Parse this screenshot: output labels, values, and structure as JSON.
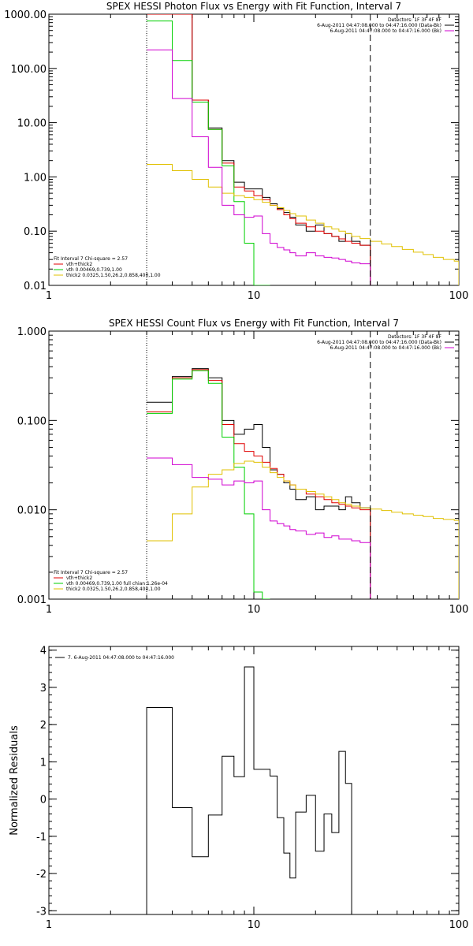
{
  "chart_data": [
    {
      "type": "line",
      "id": "p1",
      "title": "SPEX HESSI Photon Flux vs Energy with Fit Function, Interval 7",
      "xscale": "log",
      "yscale": "log",
      "xlim": [
        1,
        100
      ],
      "ylim": [
        0.01,
        1000
      ],
      "x_ticks": [
        1,
        10,
        100
      ],
      "x_tick_labels": [
        "1",
        "10",
        "100"
      ],
      "y_ticks": [
        0.01,
        0.1,
        1,
        10,
        100,
        1000
      ],
      "y_tick_labels": [
        "0.01",
        "0.10",
        "1.00",
        "10.00",
        "100.00",
        "1000.00"
      ],
      "vlines": [
        {
          "x": 3,
          "style": "dotted",
          "color": "#000000"
        },
        {
          "x": 37,
          "style": "dashed",
          "color": "#000000"
        }
      ],
      "legend_top_right": [
        {
          "text": "Detectors: 1F 3F 4F 8F",
          "color": ""
        },
        {
          "text": "6-Aug-2011 04:47:08.000 to 04:47:16.000 (Data-Bk)",
          "color": "#000000"
        },
        {
          "text": "6-Aug-2011 04:47:08.000 to 04:47:16.000 (Bk)",
          "color": "#d000d0"
        }
      ],
      "legend_bottom_left": [
        {
          "text": "Fit Interval 7   Chi-square = 2.57",
          "color": ""
        },
        {
          "text": "vth+thick2",
          "color": "#e00000"
        },
        {
          "text": "vth 0.00469,0.739,1.00",
          "color": "#00d000"
        },
        {
          "text": "thick2 0.0325,1.50,26.2,0.858,400,1.00",
          "color": "#e0c000"
        }
      ],
      "series": [
        {
          "name": "Data-Bk",
          "color": "#000000",
          "step": true,
          "edges": [
            3,
            4,
            5,
            6,
            7,
            8,
            9,
            10,
            11,
            12,
            13,
            14,
            15,
            16,
            18,
            20,
            22,
            24,
            26,
            28,
            30,
            33,
            37
          ],
          "values": [
            1000,
            1000,
            26,
            8,
            2.0,
            0.8,
            0.6,
            0.6,
            0.42,
            0.32,
            0.26,
            0.22,
            0.18,
            0.13,
            0.1,
            0.13,
            0.09,
            0.08,
            0.065,
            0.09,
            0.065,
            0.055
          ]
        },
        {
          "name": "vth+thick2",
          "color": "#e00000",
          "step": true,
          "edges": [
            3,
            4,
            5,
            6,
            7,
            8,
            9,
            10,
            11,
            12,
            13,
            14,
            15,
            16,
            18,
            20,
            22,
            24,
            26,
            28,
            30,
            33,
            37
          ],
          "values": [
            1000,
            1000,
            26,
            7.5,
            1.8,
            0.65,
            0.55,
            0.45,
            0.38,
            0.3,
            0.25,
            0.2,
            0.17,
            0.14,
            0.12,
            0.1,
            0.09,
            0.08,
            0.072,
            0.065,
            0.06,
            0.055
          ]
        },
        {
          "name": "vth",
          "color": "#00d000",
          "step": true,
          "edges": [
            3,
            4,
            5,
            6,
            7,
            8,
            9,
            10,
            11,
            12
          ],
          "values": [
            750,
            140,
            24,
            7.5,
            1.6,
            0.35,
            0.06,
            0.01,
            0.001
          ]
        },
        {
          "name": "thick2",
          "color": "#e0c000",
          "step": true,
          "edges": [
            3,
            4,
            5,
            6,
            7,
            8,
            9,
            10,
            11,
            12,
            13,
            14,
            15,
            16,
            18,
            20,
            22,
            24,
            26,
            28,
            30,
            33,
            37,
            42,
            47,
            53,
            60,
            67,
            75,
            84,
            95,
            100
          ],
          "values": [
            1.7,
            1.3,
            0.9,
            0.65,
            0.5,
            0.45,
            0.42,
            0.38,
            0.34,
            0.3,
            0.27,
            0.24,
            0.21,
            0.19,
            0.16,
            0.14,
            0.12,
            0.11,
            0.1,
            0.09,
            0.08,
            0.073,
            0.065,
            0.058,
            0.052,
            0.046,
            0.041,
            0.037,
            0.033,
            0.03,
            0.028
          ]
        },
        {
          "name": "Bk",
          "color": "#d000d0",
          "step": true,
          "edges": [
            3,
            4,
            5,
            6,
            7,
            8,
            9,
            10,
            11,
            12,
            13,
            14,
            15,
            16,
            18,
            20,
            22,
            24,
            26,
            28,
            30,
            33,
            37
          ],
          "values": [
            220,
            28,
            5.5,
            1.5,
            0.3,
            0.2,
            0.18,
            0.19,
            0.09,
            0.06,
            0.05,
            0.045,
            0.04,
            0.035,
            0.04,
            0.035,
            0.033,
            0.032,
            0.03,
            0.028,
            0.026,
            0.025
          ]
        }
      ]
    },
    {
      "type": "line",
      "id": "p2",
      "title": "SPEX HESSI Count Flux vs Energy with Fit Function, Interval 7",
      "xscale": "log",
      "yscale": "log",
      "xlim": [
        1,
        100
      ],
      "ylim": [
        0.001,
        1
      ],
      "x_ticks": [
        1,
        10,
        100
      ],
      "x_tick_labels": [
        "1",
        "10",
        "100"
      ],
      "y_ticks": [
        0.001,
        0.01,
        0.1,
        1
      ],
      "y_tick_labels": [
        "0.001",
        "0.010",
        "0.100",
        "1.000"
      ],
      "vlines": [
        {
          "x": 3,
          "style": "dotted",
          "color": "#000000"
        },
        {
          "x": 37,
          "style": "dashed",
          "color": "#000000"
        }
      ],
      "legend_top_right": [
        {
          "text": "Detectors: 1F 3F 4F 8F",
          "color": ""
        },
        {
          "text": "6-Aug-2011 04:47:08.000 to 04:47:16.000 (Data-Bk)",
          "color": "#000000"
        },
        {
          "text": "6-Aug-2011 04:47:08.000 to 04:47:16.000 (Bk)",
          "color": "#d000d0"
        }
      ],
      "legend_bottom_left": [
        {
          "text": "Fit Interval 7   Chi-square = 2.57",
          "color": ""
        },
        {
          "text": "vth+thick2",
          "color": "#e00000"
        },
        {
          "text": "vth 0.00469,0.739,1.00   full chian 1.26e-04",
          "color": "#00d000"
        },
        {
          "text": "thick2 0.0325,1.50,26.2,0.858,400,1.00",
          "color": "#e0c000"
        }
      ],
      "series": [
        {
          "name": "Data-Bk",
          "color": "#000000",
          "step": true,
          "edges": [
            3,
            4,
            5,
            6,
            7,
            8,
            9,
            10,
            11,
            12,
            13,
            14,
            15,
            16,
            18,
            20,
            22,
            24,
            26,
            28,
            30,
            33,
            37
          ],
          "values": [
            0.16,
            0.31,
            0.38,
            0.3,
            0.1,
            0.07,
            0.08,
            0.09,
            0.05,
            0.028,
            0.025,
            0.02,
            0.017,
            0.013,
            0.014,
            0.01,
            0.011,
            0.011,
            0.01,
            0.014,
            0.012,
            0.0105
          ]
        },
        {
          "name": "vth+thick2",
          "color": "#e00000",
          "step": true,
          "edges": [
            3,
            4,
            5,
            6,
            7,
            8,
            9,
            10,
            11,
            12,
            13,
            14,
            15,
            16,
            18,
            20,
            22,
            24,
            26,
            28,
            30,
            33,
            37
          ],
          "values": [
            0.125,
            0.3,
            0.37,
            0.28,
            0.09,
            0.055,
            0.045,
            0.04,
            0.034,
            0.029,
            0.025,
            0.021,
            0.019,
            0.017,
            0.015,
            0.014,
            0.013,
            0.012,
            0.0115,
            0.011,
            0.0105,
            0.01
          ]
        },
        {
          "name": "vth",
          "color": "#00d000",
          "step": true,
          "edges": [
            3,
            4,
            5,
            6,
            7,
            8,
            9,
            10,
            11,
            12
          ],
          "values": [
            0.12,
            0.29,
            0.36,
            0.26,
            0.065,
            0.03,
            0.009,
            0.0012,
            0.0008
          ]
        },
        {
          "name": "thick2",
          "color": "#e0c000",
          "step": true,
          "edges": [
            3,
            4,
            5,
            6,
            7,
            8,
            9,
            10,
            11,
            12,
            13,
            14,
            15,
            16,
            18,
            20,
            22,
            24,
            26,
            28,
            30,
            33,
            37,
            42,
            47,
            53,
            60,
            67,
            75,
            84,
            95,
            100
          ],
          "values": [
            0.0045,
            0.009,
            0.018,
            0.025,
            0.028,
            0.033,
            0.035,
            0.034,
            0.03,
            0.026,
            0.023,
            0.021,
            0.019,
            0.017,
            0.016,
            0.015,
            0.014,
            0.013,
            0.012,
            0.0115,
            0.011,
            0.0105,
            0.0102,
            0.0098,
            0.0094,
            0.009,
            0.0087,
            0.0084,
            0.008,
            0.0078,
            0.0076
          ]
        },
        {
          "name": "Bk",
          "color": "#d000d0",
          "step": true,
          "edges": [
            3,
            4,
            5,
            6,
            7,
            8,
            9,
            10,
            11,
            12,
            13,
            14,
            15,
            16,
            18,
            20,
            22,
            24,
            26,
            28,
            30,
            33,
            37
          ],
          "values": [
            0.038,
            0.032,
            0.023,
            0.022,
            0.019,
            0.021,
            0.02,
            0.021,
            0.01,
            0.0075,
            0.007,
            0.0066,
            0.006,
            0.0058,
            0.0053,
            0.0055,
            0.0049,
            0.0051,
            0.0047,
            0.0047,
            0.0045,
            0.0043
          ]
        }
      ]
    },
    {
      "type": "line",
      "id": "p3",
      "title": "",
      "ylabel": "Normalized Residuals",
      "xscale": "log",
      "yscale": "linear",
      "xlim": [
        1,
        100
      ],
      "ylim": [
        -3.1,
        4.1
      ],
      "x_ticks": [
        1,
        10,
        100
      ],
      "x_tick_labels": [
        "1",
        "10",
        "100"
      ],
      "y_ticks": [
        -3,
        -2,
        -1,
        0,
        1,
        2,
        3,
        4
      ],
      "y_tick_labels": [
        "-3",
        "-2",
        "-1",
        "0",
        "1",
        "2",
        "3",
        "4"
      ],
      "legend_top_left": [
        {
          "text": "7.  6-Aug-2011 04:47:08.000 to 04:47:16.000",
          "color": "#000000"
        }
      ],
      "series": [
        {
          "name": "7.",
          "color": "#000000",
          "step": true,
          "drop_to_bottom": true,
          "edges": [
            3,
            4,
            5,
            6,
            7,
            8,
            9,
            10,
            11,
            12,
            13,
            14,
            15,
            16,
            18,
            20,
            22,
            24,
            26,
            28,
            30,
            33,
            37
          ],
          "values": [
            2.46,
            -0.23,
            -1.55,
            -0.43,
            1.15,
            0.6,
            3.55,
            0.8,
            0.8,
            0.62,
            -0.5,
            -1.45,
            -2.12,
            -0.35,
            0.1,
            -1.4,
            -0.4,
            -0.9,
            1.28,
            0.42,
            -3.1,
            -3.1
          ]
        }
      ]
    }
  ]
}
